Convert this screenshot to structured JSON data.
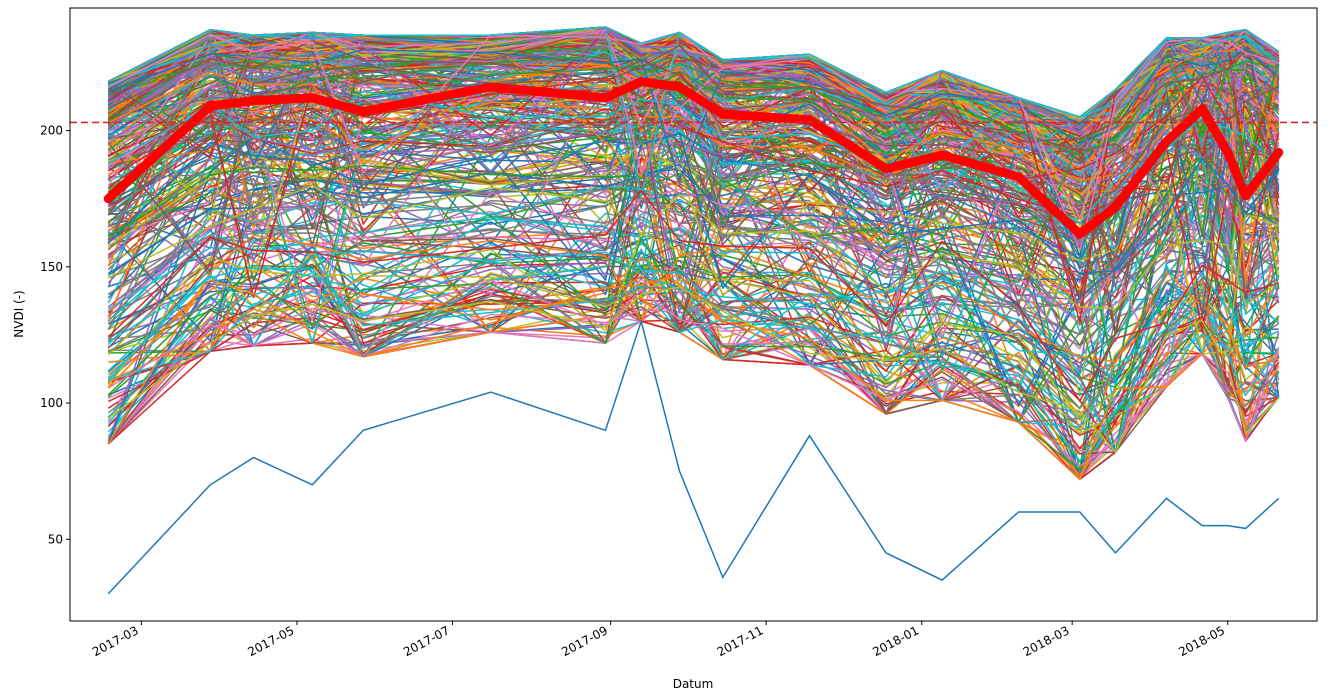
{
  "chart_data": {
    "type": "line",
    "title": "",
    "xlabel": "Datum",
    "ylabel": "NVDI (-)",
    "xlim": [
      "2017-02-01",
      "2018-06-05"
    ],
    "ylim": [
      20,
      245
    ],
    "grid": false,
    "legend": "none",
    "x_ticks": [
      "2017-03",
      "2017-05",
      "2017-07",
      "2017-09",
      "2017-11",
      "2018-01",
      "2018-03",
      "2018-05"
    ],
    "y_ticks": [
      50,
      100,
      150,
      200
    ],
    "dates": [
      "2017-02-16",
      "2017-03-28",
      "2017-04-14",
      "2017-05-07",
      "2017-05-27",
      "2017-07-16",
      "2017-08-30",
      "2017-09-13",
      "2017-09-28",
      "2017-10-15",
      "2017-11-18",
      "2017-12-18",
      "2018-01-09",
      "2018-02-08",
      "2018-03-04",
      "2018-03-18",
      "2018-04-07",
      "2018-04-21",
      "2018-05-01",
      "2018-05-08",
      "2018-05-21"
    ],
    "mean_series": {
      "color": "#ff0000",
      "values": [
        175,
        209,
        211,
        212,
        207,
        216,
        212,
        218,
        216,
        206,
        204,
        186,
        191,
        183,
        162,
        172,
        196,
        208,
        192,
        176,
        192
      ]
    },
    "reference_line": {
      "y": 203,
      "style": "dashed",
      "color": "#d62728"
    },
    "individual_series": {
      "count": 460,
      "palette": [
        "#1f77b4",
        "#ff7f0e",
        "#2ca02c",
        "#d62728",
        "#9467bd",
        "#8c564b",
        "#e377c2",
        "#7f7f7f",
        "#bcbd22",
        "#17becf"
      ],
      "upper_envelope": [
        218,
        237,
        235,
        236,
        235,
        235,
        238,
        232,
        236,
        226,
        228,
        214,
        222,
        212,
        205,
        215,
        234,
        234,
        236,
        237,
        229
      ],
      "lower_envelope": [
        30,
        70,
        80,
        70,
        90,
        104,
        90,
        130,
        75,
        36,
        88,
        45,
        35,
        60,
        60,
        45,
        65,
        55,
        55,
        54,
        65
      ]
    }
  }
}
